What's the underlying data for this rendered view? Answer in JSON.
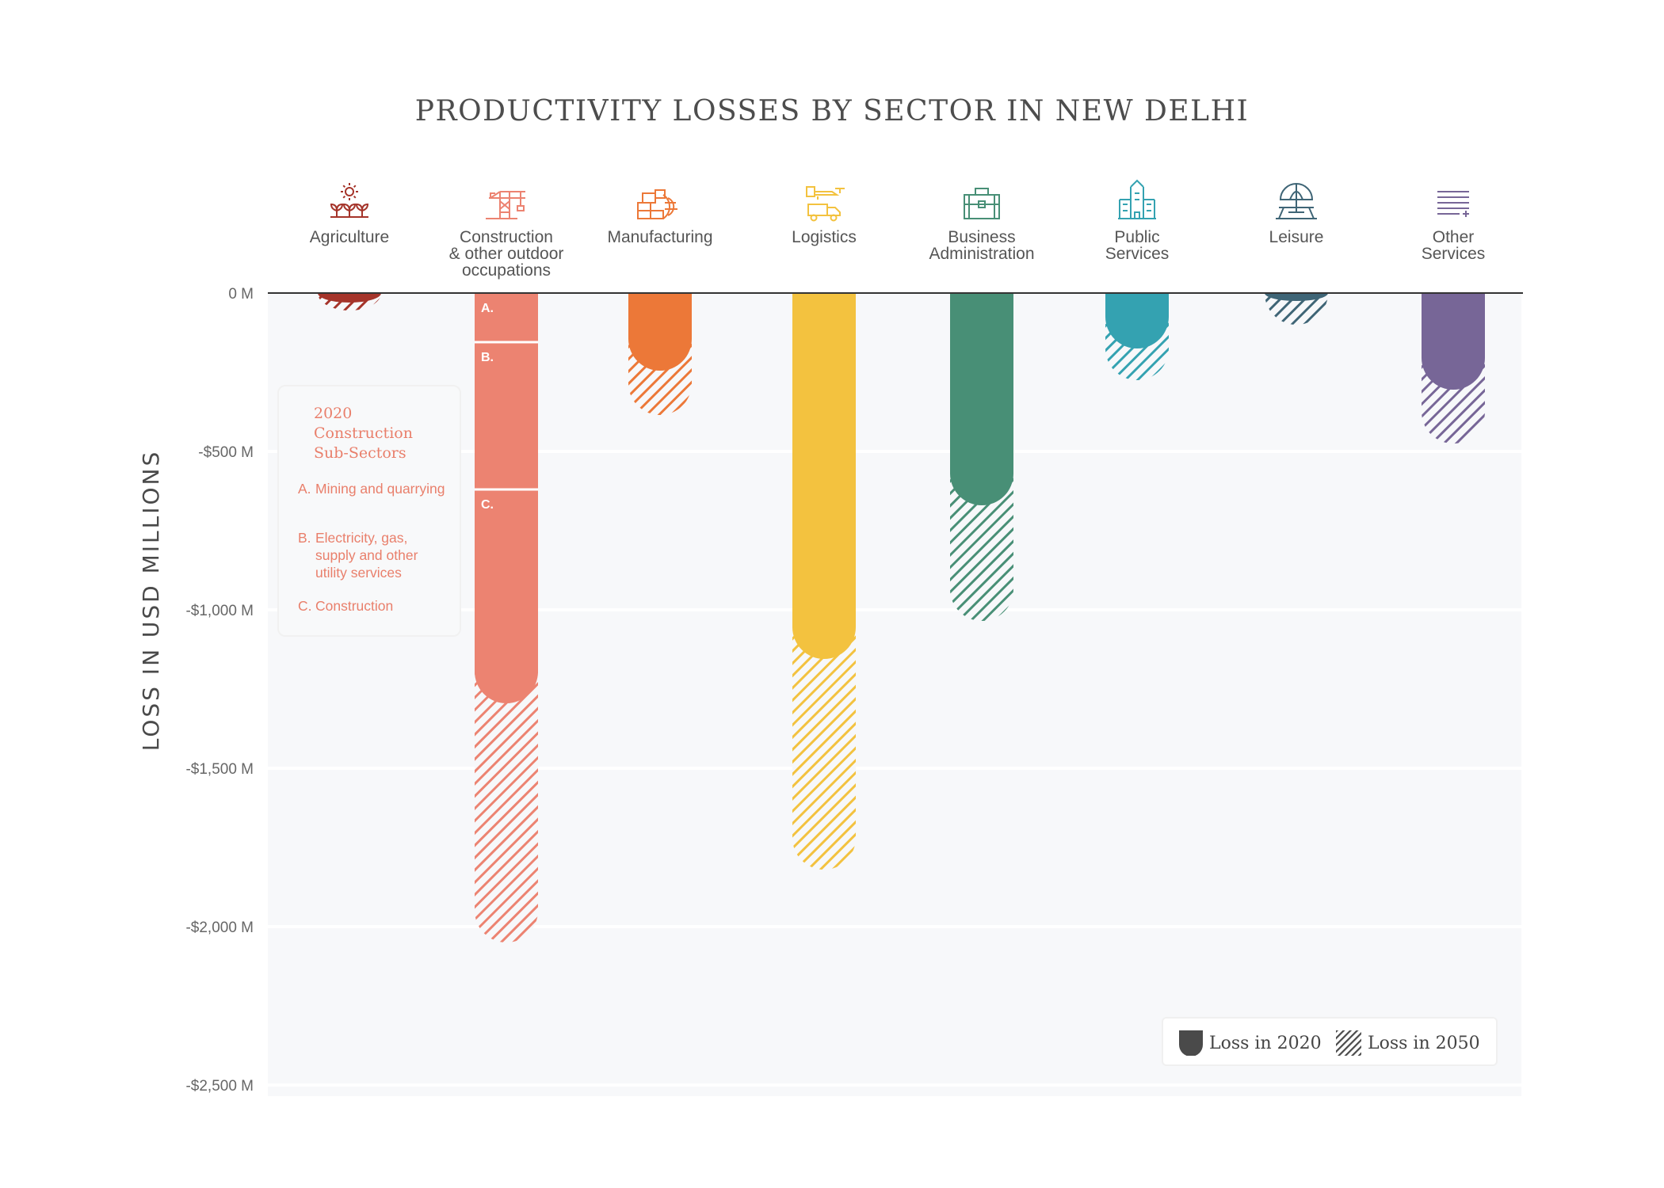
{
  "chart_data": {
    "type": "bar",
    "title": "PRODUCTIVITY LOSSES BY SECTOR IN NEW DELHI",
    "ylabel": "LOSS IN USD MILLIONS",
    "ylim": [
      -2500,
      0
    ],
    "yticks": [
      0,
      -500,
      -1000,
      -1500,
      -2000,
      -2500
    ],
    "ytick_labels": [
      "0 M",
      "-$500 M",
      "-$1,000 M",
      "-$1,500 M",
      "-$2,000 M",
      "-$2,500 M"
    ],
    "grid": true,
    "categories": [
      {
        "label": "Agriculture",
        "icon": "plant-sun-icon",
        "color": "#a5342a",
        "loss_2020": -30,
        "loss_2050": -55
      },
      {
        "label": "Construction\n& other outdoor\noccupations",
        "icon": "crane-icon",
        "color": "#ec8371",
        "loss_2020": -1295,
        "loss_2050": -2050,
        "segments": [
          {
            "label": "A.",
            "from": 0,
            "to": -155
          },
          {
            "label": "B.",
            "from": -155,
            "to": -620
          },
          {
            "label": "C.",
            "from": -620,
            "to": -1295
          }
        ]
      },
      {
        "label": "Manufacturing",
        "icon": "factory-crates-icon",
        "color": "#ec7838",
        "loss_2020": -245,
        "loss_2050": -385
      },
      {
        "label": "Logistics",
        "icon": "truck-drone-icon",
        "color": "#f3c23f",
        "loss_2020": -1155,
        "loss_2050": -1820
      },
      {
        "label": "Business\nAdministration",
        "icon": "briefcase-icon",
        "color": "#488f76",
        "loss_2020": -670,
        "loss_2050": -1035
      },
      {
        "label": "Public\nServices",
        "icon": "public-building-icon",
        "color": "#34a2b1",
        "loss_2020": -175,
        "loss_2050": -275
      },
      {
        "label": "Leisure",
        "icon": "umbrella-table-icon",
        "color": "#3f6576",
        "loss_2020": -25,
        "loss_2050": -100
      },
      {
        "label": "Other\nServices",
        "icon": "list-plus-icon",
        "color": "#776697",
        "loss_2020": -305,
        "loss_2050": -475
      }
    ],
    "series": [
      {
        "name": "Loss in 2020",
        "style": "solid"
      },
      {
        "name": "Loss in 2050",
        "style": "hatched"
      }
    ],
    "legend_position": "bottom-right"
  },
  "subsectors": {
    "title": "2020\nConstruction\nSub-Sectors",
    "items": [
      {
        "letter": "A.",
        "text": "Mining and quarrying"
      },
      {
        "letter": "B.",
        "text": "Electricity, gas, supply and other utility services"
      },
      {
        "letter": "C.",
        "text": "Construction"
      }
    ]
  },
  "legend": {
    "solid_label": "Loss in 2020",
    "hatched_label": "Loss in 2050",
    "swatch_color": "#4a4a4a"
  }
}
